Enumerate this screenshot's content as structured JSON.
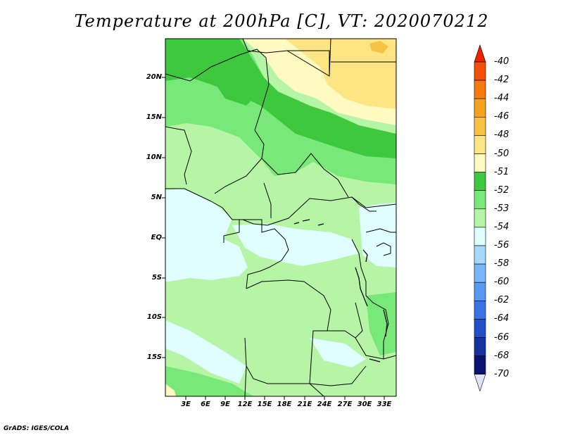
{
  "title": "Temperature at 200hPa [C], VT: 2020070212",
  "credit": "GrADS: IGES/COLA",
  "lat_axis": [
    "20N",
    "15N",
    "10N",
    "5N",
    "EQ",
    "5S",
    "10S",
    "15S"
  ],
  "lon_axis": [
    "3E",
    "6E",
    "9E",
    "12E",
    "15E",
    "18E",
    "21E",
    "24E",
    "27E",
    "30E",
    "33E"
  ],
  "colorbar": {
    "levels": [
      {
        "label": "-40",
        "color": "#ee2200"
      },
      {
        "label": "-42",
        "color": "#f4500a"
      },
      {
        "label": "-44",
        "color": "#f57a10"
      },
      {
        "label": "-46",
        "color": "#f5a21e"
      },
      {
        "label": "-48",
        "color": "#f7c244"
      },
      {
        "label": "-50",
        "color": "#fde583"
      },
      {
        "label": "-51",
        "color": "#fffac0"
      },
      {
        "label": "-52",
        "color": "#3ec83e"
      },
      {
        "label": "-53",
        "color": "#78e878"
      },
      {
        "label": "-54",
        "color": "#b6f5a6"
      },
      {
        "label": "-56",
        "color": "#e0fefe"
      },
      {
        "label": "-58",
        "color": "#a8d8fe"
      },
      {
        "label": "-60",
        "color": "#78b8fa"
      },
      {
        "label": "-62",
        "color": "#5898f0"
      },
      {
        "label": "-64",
        "color": "#3a74e0"
      },
      {
        "label": "-66",
        "color": "#2250c8"
      },
      {
        "label": "-68",
        "color": "#1432a0"
      },
      {
        "label": "-70",
        "color": "#0a1470"
      }
    ],
    "under_color": "#e0e0ff"
  }
}
